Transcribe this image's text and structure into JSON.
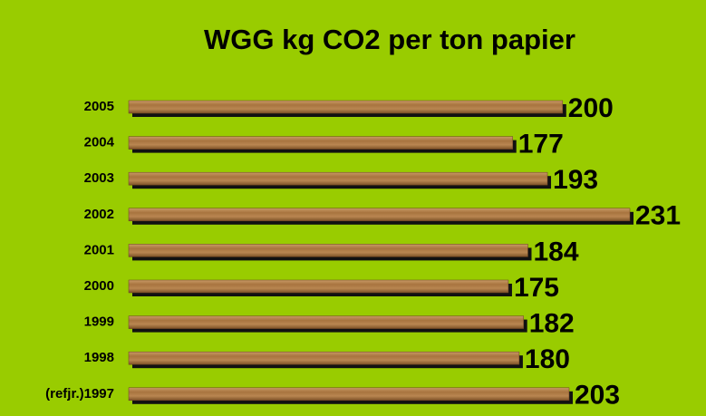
{
  "chart_data": {
    "type": "bar",
    "orientation": "horizontal",
    "title": "WGG kg CO2 per ton papier",
    "categories": [
      "2005",
      "2004",
      "2003",
      "2002",
      "2001",
      "2000",
      "1999",
      "1998",
      "(refjr.)1997"
    ],
    "values": [
      200,
      177,
      193,
      231,
      184,
      175,
      182,
      180,
      203
    ],
    "color": "#9a6a3c"
  }
}
